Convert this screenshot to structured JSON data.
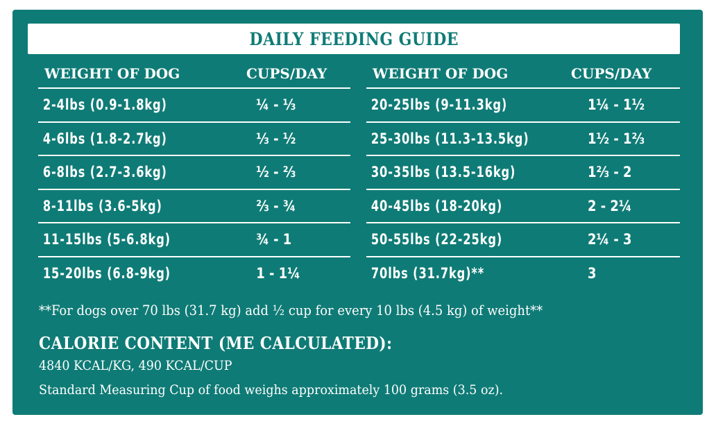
{
  "title": "DAILY FEEDING GUIDE",
  "colors": {
    "teal": "#0f7b76",
    "white": "#ffffff"
  },
  "left_table": {
    "headers": {
      "weight": "WEIGHT OF DOG",
      "cups": "CUPS/DAY"
    },
    "rows": [
      {
        "weight": "2-4lbs (0.9-1.8kg)",
        "cups": "¼ - ⅓"
      },
      {
        "weight": "4-6lbs (1.8-2.7kg)",
        "cups": "⅓ - ½"
      },
      {
        "weight": "6-8lbs (2.7-3.6kg)",
        "cups": "½ - ⅔"
      },
      {
        "weight": "8-11lbs (3.6-5kg)",
        "cups": "⅔ - ¾"
      },
      {
        "weight": "11-15lbs (5-6.8kg)",
        "cups": "¾ - 1"
      },
      {
        "weight": "15-20lbs (6.8-9kg)",
        "cups": "1 - 1¼"
      }
    ]
  },
  "right_table": {
    "headers": {
      "weight": "WEIGHT OF DOG",
      "cups": "CUPS/DAY"
    },
    "rows": [
      {
        "weight": "20-25lbs (9-11.3kg)",
        "cups": "1¼ - 1½"
      },
      {
        "weight": "25-30lbs (11.3-13.5kg)",
        "cups": "1½ - 1⅔"
      },
      {
        "weight": "30-35lbs (13.5-16kg)",
        "cups": "1⅔ - 2"
      },
      {
        "weight": "40-45lbs (18-20kg)",
        "cups": "2 - 2¼"
      },
      {
        "weight": "50-55lbs (22-25kg)",
        "cups": "2¼ - 3"
      },
      {
        "weight": "70lbs (31.7kg)**",
        "cups": "3"
      }
    ]
  },
  "footnote": "**For dogs over 70 lbs (31.7 kg) add ½ cup for every 10 lbs (4.5 kg) of weight**",
  "calorie": {
    "heading": "CALORIE CONTENT (ME CALCULATED):",
    "line1": "4840 KCAL/KG, 490 KCAL/CUP",
    "line2": "Standard Measuring Cup of food weighs approximately 100 grams (3.5 oz)."
  }
}
